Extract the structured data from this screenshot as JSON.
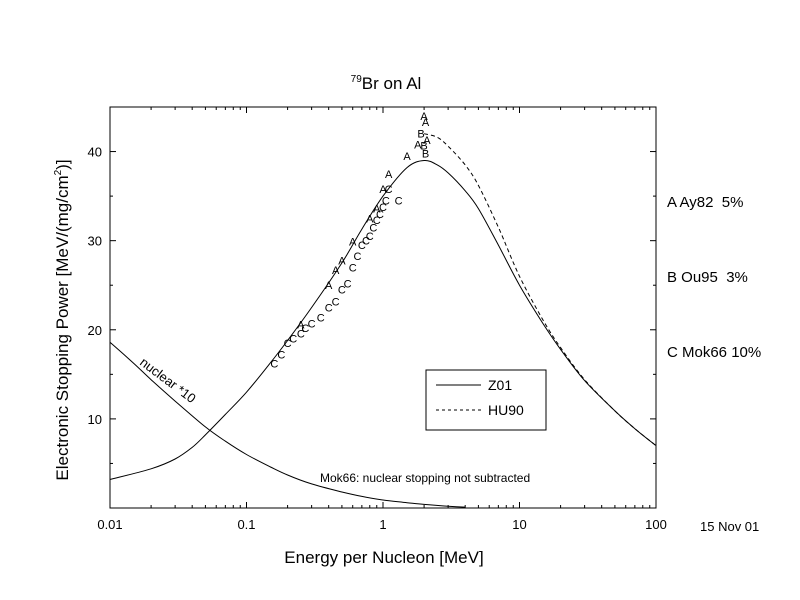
{
  "chart_data": {
    "type": "line",
    "title": "Br on Al",
    "title_superscript": "79",
    "xlabel": "Energy per Nucleon [MeV]",
    "ylabel": "Electronic Stopping Power [MeV/(mg/cm",
    "ylabel_superscript": "2",
    "ylabel_suffix": ")]",
    "x_scale": "log",
    "xlim": [
      0.01,
      100
    ],
    "ylim": [
      0,
      45
    ],
    "x_ticks": [
      0.01,
      0.1,
      1,
      10,
      100
    ],
    "x_tick_labels": [
      "0.01",
      "0.1",
      "1",
      "10",
      "100"
    ],
    "y_ticks": [
      10,
      20,
      30,
      40
    ],
    "y_tick_labels": [
      "10",
      "20",
      "30",
      "40"
    ],
    "grid": false,
    "series": [
      {
        "name": "Z01",
        "style": "solid",
        "points": [
          [
            0.01,
            3.2
          ],
          [
            0.02,
            4.4
          ],
          [
            0.03,
            5.5
          ],
          [
            0.04,
            6.8
          ],
          [
            0.05,
            8.2
          ],
          [
            0.07,
            10.5
          ],
          [
            0.1,
            13.0
          ],
          [
            0.15,
            16.3
          ],
          [
            0.2,
            18.8
          ],
          [
            0.3,
            22.5
          ],
          [
            0.5,
            27.5
          ],
          [
            0.7,
            31.3
          ],
          [
            1.0,
            35.0
          ],
          [
            1.5,
            38.2
          ],
          [
            2.0,
            39.0
          ],
          [
            2.5,
            38.5
          ],
          [
            3.0,
            37.6
          ],
          [
            4.0,
            35.6
          ],
          [
            5.0,
            33.6
          ],
          [
            7.0,
            29.5
          ],
          [
            10.0,
            25.0
          ],
          [
            15.0,
            20.6
          ],
          [
            20.0,
            17.8
          ],
          [
            30.0,
            14.3
          ],
          [
            50.0,
            10.9
          ],
          [
            70.0,
            8.9
          ],
          [
            100.0,
            7.0
          ]
        ]
      },
      {
        "name": "HU90",
        "style": "dashed",
        "points": [
          [
            2.0,
            42.0
          ],
          [
            2.5,
            41.6
          ],
          [
            3.0,
            40.6
          ],
          [
            4.0,
            38.5
          ],
          [
            5.0,
            36.2
          ],
          [
            7.0,
            31.5
          ],
          [
            10.0,
            26.0
          ],
          [
            15.0,
            21.0
          ],
          [
            20.0,
            18.0
          ],
          [
            30.0,
            14.4
          ],
          [
            50.0,
            10.9
          ],
          [
            70.0,
            8.9
          ],
          [
            100.0,
            7.0
          ]
        ]
      },
      {
        "name": "nuclear *10",
        "style": "solid",
        "points": [
          [
            0.01,
            18.6
          ],
          [
            0.015,
            16.2
          ],
          [
            0.02,
            14.4
          ],
          [
            0.03,
            12.0
          ],
          [
            0.05,
            9.1
          ],
          [
            0.07,
            7.5
          ],
          [
            0.1,
            6.0
          ],
          [
            0.15,
            4.6
          ],
          [
            0.2,
            3.7
          ],
          [
            0.3,
            2.7
          ],
          [
            0.5,
            1.8
          ],
          [
            0.7,
            1.3
          ],
          [
            1.0,
            0.9
          ],
          [
            1.5,
            0.6
          ],
          [
            2.0,
            0.4
          ],
          [
            3.0,
            0.2
          ],
          [
            4.0,
            0.1
          ]
        ]
      }
    ],
    "markers": [
      {
        "label": "A",
        "points": [
          [
            0.25,
            20.6
          ],
          [
            0.4,
            25.0
          ],
          [
            0.45,
            26.7
          ],
          [
            0.5,
            27.8
          ],
          [
            0.6,
            29.9
          ],
          [
            0.8,
            32.5
          ],
          [
            0.9,
            33.6
          ],
          [
            1.0,
            35.8
          ],
          [
            1.1,
            37.5
          ],
          [
            1.5,
            39.5
          ],
          [
            1.8,
            40.8
          ],
          [
            2.0,
            44.0
          ],
          [
            2.05,
            43.3
          ],
          [
            2.1,
            41.3
          ]
        ]
      },
      {
        "label": "B",
        "points": [
          [
            1.9,
            42.0
          ],
          [
            2.0,
            40.7
          ],
          [
            2.05,
            39.8
          ]
        ]
      },
      {
        "label": "C",
        "points": [
          [
            0.16,
            16.2
          ],
          [
            0.18,
            17.2
          ],
          [
            0.2,
            18.5
          ],
          [
            0.22,
            19.0
          ],
          [
            0.25,
            19.6
          ],
          [
            0.27,
            20.2
          ],
          [
            0.3,
            20.7
          ],
          [
            0.35,
            21.4
          ],
          [
            0.4,
            22.5
          ],
          [
            0.45,
            23.2
          ],
          [
            0.5,
            24.5
          ],
          [
            0.55,
            25.2
          ],
          [
            0.6,
            27.0
          ],
          [
            0.65,
            28.3
          ],
          [
            0.7,
            29.5
          ],
          [
            0.75,
            30.0
          ],
          [
            0.8,
            30.5
          ],
          [
            0.85,
            31.5
          ],
          [
            0.9,
            32.3
          ],
          [
            0.95,
            33.0
          ],
          [
            1.0,
            33.8
          ],
          [
            1.05,
            34.5
          ],
          [
            1.1,
            35.8
          ],
          [
            1.3,
            34.5
          ]
        ]
      }
    ],
    "legend": {
      "position": "bottom-right",
      "entries": [
        {
          "label": "Z01",
          "style": "solid"
        },
        {
          "label": "HU90",
          "style": "dashed"
        }
      ]
    },
    "annotations": {
      "nuclear_label": "nuclear *10",
      "note": "Mok66: nuclear stopping not subtracted"
    },
    "data_sources": [
      {
        "text": "A Ay82  5%"
      },
      {
        "text": "B Ou95  3%"
      },
      {
        "text": "C Mok66 10%"
      }
    ],
    "date": "15 Nov 01"
  }
}
